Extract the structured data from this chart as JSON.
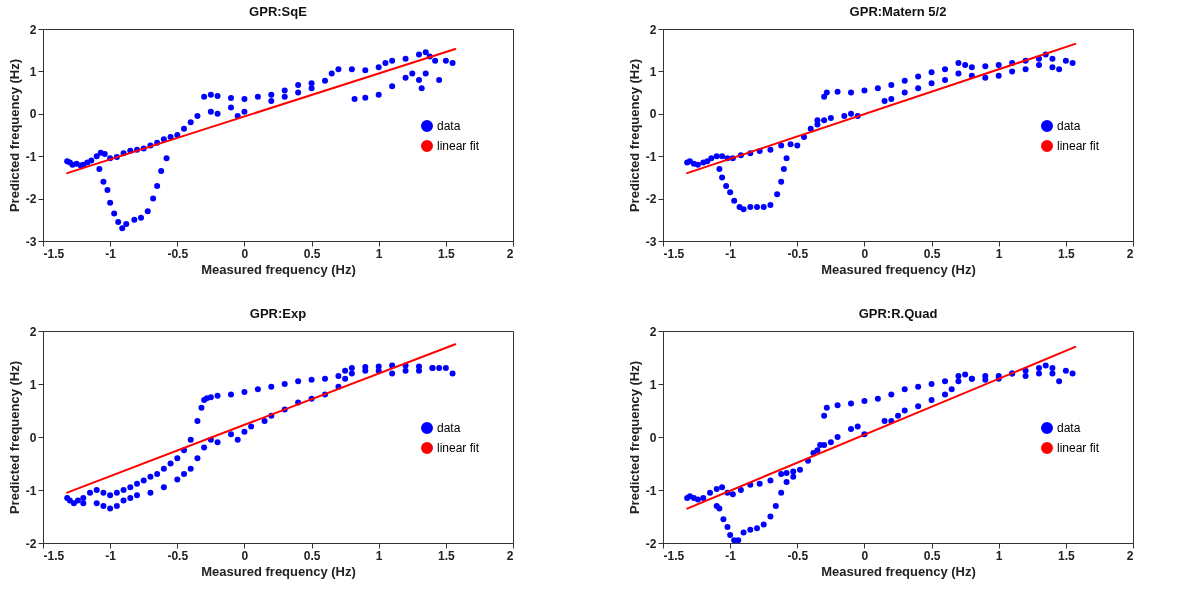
{
  "chart_data": [
    {
      "type": "scatter",
      "title": "GPR:SqE",
      "xlabel": "Measured frequency (Hz)",
      "ylabel": "Predicted frequency (Hz)",
      "xlim": [
        -1.5,
        2
      ],
      "ylim": [
        -3,
        2
      ],
      "xticks": [
        -1.5,
        -1,
        -0.5,
        0,
        0.5,
        1,
        1.5,
        2
      ],
      "yticks": [
        -3,
        -2,
        -1,
        0,
        1,
        2
      ],
      "legend": "right",
      "series": [
        {
          "name": "data",
          "color": "#0000ff",
          "marker": "circle",
          "x": [
            -1.32,
            -1.3,
            -1.28,
            -1.25,
            -1.22,
            -1.2,
            -1.17,
            -1.14,
            -1.1,
            -1.07,
            -1.04,
            -1.0,
            -0.95,
            -0.9,
            -0.85,
            -0.8,
            -0.75,
            -0.7,
            -0.65,
            -0.6,
            -0.55,
            -0.5,
            -0.45,
            -0.4,
            -0.35,
            -0.3,
            -0.25,
            -0.2,
            -0.1,
            0,
            0.1,
            0.2,
            0.3,
            0.4,
            0.5,
            0.6,
            0.65,
            0.7,
            0.8,
            0.9,
            1.0,
            1.05,
            1.1,
            1.2,
            1.3,
            1.35,
            1.38,
            1.42,
            1.5,
            1.55,
            -1.08,
            -1.05,
            -1.02,
            -1.0,
            -0.97,
            -0.94,
            -0.91,
            -0.88,
            -0.82,
            -0.77,
            -0.72,
            -0.68,
            -0.65,
            -0.62,
            -0.58,
            -0.25,
            -0.2,
            -0.1,
            -0.05,
            0,
            0.2,
            0.3,
            0.4,
            0.5,
            0.82,
            0.9,
            1.0,
            1.1,
            1.2,
            1.25,
            1.3,
            1.32,
            1.35,
            1.45
          ],
          "values": [
            -1.12,
            -1.15,
            -1.2,
            -1.18,
            -1.22,
            -1.2,
            -1.15,
            -1.1,
            -1.0,
            -0.92,
            -0.95,
            -1.05,
            -1.02,
            -0.93,
            -0.87,
            -0.85,
            -0.82,
            -0.75,
            -0.68,
            -0.6,
            -0.55,
            -0.5,
            -0.35,
            -0.2,
            -0.05,
            0.4,
            0.45,
            0.42,
            0.37,
            0.35,
            0.4,
            0.45,
            0.55,
            0.68,
            0.72,
            0.78,
            0.95,
            1.05,
            1.05,
            1.03,
            1.1,
            1.2,
            1.25,
            1.3,
            1.4,
            1.45,
            1.35,
            1.25,
            1.25,
            1.2,
            -1.3,
            -1.6,
            -1.8,
            -2.1,
            -2.35,
            -2.55,
            -2.7,
            -2.6,
            -2.5,
            -2.45,
            -2.3,
            -2.0,
            -1.7,
            -1.35,
            -1.05,
            0.05,
            0.0,
            0.15,
            -0.05,
            0.05,
            0.3,
            0.4,
            0.5,
            0.6,
            0.35,
            0.38,
            0.45,
            0.65,
            0.85,
            0.95,
            0.8,
            0.6,
            0.95,
            0.8
          ]
        },
        {
          "name": "linear fit",
          "type": "line",
          "color": "#ff0000",
          "x": [
            -1.32,
            1.57
          ],
          "values": [
            -1.4,
            1.53
          ]
        }
      ]
    },
    {
      "type": "scatter",
      "title": "GPR:Matern 5/2",
      "xlabel": "Measured frequency (Hz)",
      "ylabel": "Predicted frequency (Hz)",
      "xlim": [
        -1.5,
        2
      ],
      "ylim": [
        -3,
        2
      ],
      "xticks": [
        -1.5,
        -1,
        -0.5,
        0,
        0.5,
        1,
        1.5,
        2
      ],
      "yticks": [
        -3,
        -2,
        -1,
        0,
        1,
        2
      ],
      "legend": "right",
      "series": [
        {
          "name": "data",
          "color": "#0000ff",
          "marker": "circle",
          "x": [
            -1.32,
            -1.3,
            -1.27,
            -1.24,
            -1.2,
            -1.17,
            -1.14,
            -1.1,
            -1.06,
            -1.02,
            -0.98,
            -0.92,
            -0.85,
            -0.78,
            -0.7,
            -0.62,
            -0.55,
            -0.5,
            -0.45,
            -0.4,
            -0.35,
            -0.3,
            -0.28,
            -0.2,
            -0.1,
            0,
            0.1,
            0.2,
            0.3,
            0.4,
            0.5,
            0.6,
            0.7,
            0.75,
            0.8,
            0.9,
            1.0,
            1.1,
            1.2,
            1.3,
            1.35,
            1.4,
            1.45,
            1.5,
            1.55,
            -1.08,
            -1.06,
            -1.03,
            -1.0,
            -0.97,
            -0.93,
            -0.9,
            -0.85,
            -0.8,
            -0.75,
            -0.7,
            -0.65,
            -0.62,
            -0.6,
            -0.58,
            -0.35,
            -0.3,
            -0.25,
            -0.15,
            -0.1,
            -0.05,
            0.15,
            0.2,
            0.3,
            0.4,
            0.5,
            0.6,
            0.7,
            0.8,
            0.9,
            1.0,
            1.1,
            1.2,
            1.3,
            1.4
          ],
          "values": [
            -1.15,
            -1.12,
            -1.18,
            -1.2,
            -1.15,
            -1.12,
            -1.05,
            -1.0,
            -1.0,
            -1.05,
            -1.05,
            -0.98,
            -0.93,
            -0.88,
            -0.85,
            -0.75,
            -0.72,
            -0.75,
            -0.55,
            -0.35,
            -0.15,
            0.4,
            0.5,
            0.52,
            0.5,
            0.55,
            0.6,
            0.68,
            0.78,
            0.88,
            0.98,
            1.05,
            1.2,
            1.15,
            1.1,
            1.12,
            1.15,
            1.2,
            1.25,
            1.3,
            1.4,
            1.3,
            1.05,
            1.25,
            1.2,
            -1.3,
            -1.5,
            -1.7,
            -1.85,
            -2.05,
            -2.2,
            -2.25,
            -2.2,
            -2.2,
            -2.2,
            -2.15,
            -1.9,
            -1.6,
            -1.3,
            -1.05,
            -0.25,
            -0.15,
            -0.1,
            -0.05,
            0.0,
            -0.05,
            0.3,
            0.35,
            0.5,
            0.6,
            0.72,
            0.8,
            0.95,
            0.9,
            0.85,
            0.9,
            1.0,
            1.05,
            1.15,
            1.1
          ]
        },
        {
          "name": "linear fit",
          "type": "line",
          "color": "#ff0000",
          "x": [
            -1.32,
            1.57
          ],
          "values": [
            -1.4,
            1.65
          ]
        }
      ]
    },
    {
      "type": "scatter",
      "title": "GPR:Exp",
      "xlabel": "Measured frequency (Hz)",
      "ylabel": "Predicted frequency (Hz)",
      "xlim": [
        -1.5,
        2
      ],
      "ylim": [
        -2,
        2
      ],
      "xticks": [
        -1.5,
        -1,
        -0.5,
        0,
        0.5,
        1,
        1.5,
        2
      ],
      "yticks": [
        -2,
        -1,
        0,
        1,
        2
      ],
      "legend": "right",
      "series": [
        {
          "name": "data",
          "color": "#0000ff",
          "marker": "circle",
          "x": [
            -1.32,
            -1.3,
            -1.27,
            -1.24,
            -1.2,
            -1.15,
            -1.1,
            -1.05,
            -1.0,
            -0.95,
            -0.9,
            -0.85,
            -0.8,
            -0.75,
            -0.7,
            -0.65,
            -0.6,
            -0.55,
            -0.5,
            -0.45,
            -0.4,
            -0.35,
            -0.32,
            -0.3,
            -0.28,
            -0.25,
            -0.2,
            -0.1,
            0,
            0.1,
            0.2,
            0.3,
            0.4,
            0.5,
            0.6,
            0.7,
            0.75,
            0.8,
            0.9,
            1.0,
            1.1,
            1.2,
            1.3,
            1.4,
            1.45,
            1.5,
            1.55,
            -1.2,
            -1.1,
            -1.05,
            -1.0,
            -0.95,
            -0.9,
            -0.85,
            -0.8,
            -0.7,
            -0.6,
            -0.5,
            -0.45,
            -0.4,
            -0.35,
            -0.3,
            -0.25,
            -0.2,
            -0.1,
            -0.05,
            0,
            0.05,
            0.15,
            0.2,
            0.3,
            0.4,
            0.5,
            0.6,
            0.7,
            0.75,
            0.8,
            0.9,
            1.0,
            1.1,
            1.2,
            1.3,
            1.4
          ],
          "values": [
            -1.15,
            -1.2,
            -1.25,
            -1.2,
            -1.15,
            -1.05,
            -1.0,
            -1.05,
            -1.1,
            -1.05,
            -1.0,
            -0.95,
            -0.88,
            -0.82,
            -0.75,
            -0.7,
            -0.6,
            -0.5,
            -0.4,
            -0.25,
            -0.05,
            0.3,
            0.55,
            0.7,
            0.73,
            0.75,
            0.78,
            0.8,
            0.85,
            0.9,
            0.95,
            1.0,
            1.05,
            1.08,
            1.1,
            1.15,
            1.25,
            1.3,
            1.32,
            1.33,
            1.35,
            1.35,
            1.33,
            1.3,
            1.3,
            1.3,
            1.2,
            -1.25,
            -1.25,
            -1.3,
            -1.35,
            -1.3,
            -1.2,
            -1.15,
            -1.1,
            -1.05,
            -0.95,
            -0.8,
            -0.7,
            -0.6,
            -0.4,
            -0.2,
            -0.05,
            -0.1,
            0.05,
            -0.05,
            0.1,
            0.2,
            0.3,
            0.4,
            0.52,
            0.65,
            0.72,
            0.8,
            0.95,
            1.1,
            1.2,
            1.25,
            1.25,
            1.2,
            1.25,
            1.25,
            1.3
          ]
        },
        {
          "name": "linear fit",
          "type": "line",
          "color": "#ff0000",
          "x": [
            -1.32,
            1.57
          ],
          "values": [
            -1.05,
            1.75
          ]
        }
      ]
    },
    {
      "type": "scatter",
      "title": "GPR:R.Quad",
      "xlabel": "Measured frequency (Hz)",
      "ylabel": "Predicted frequency (Hz)",
      "xlim": [
        -1.5,
        2
      ],
      "ylim": [
        -2,
        2
      ],
      "xticks": [
        -1.5,
        -1,
        -0.5,
        0,
        0.5,
        1,
        1.5,
        2
      ],
      "yticks": [
        -2,
        -1,
        0,
        1,
        2
      ],
      "legend": "right",
      "series": [
        {
          "name": "data",
          "color": "#0000ff",
          "marker": "circle",
          "x": [
            -1.32,
            -1.3,
            -1.27,
            -1.24,
            -1.2,
            -1.15,
            -1.1,
            -1.06,
            -1.02,
            -0.98,
            -0.92,
            -0.85,
            -0.78,
            -0.7,
            -0.62,
            -0.58,
            -0.53,
            -0.48,
            -0.42,
            -0.38,
            -0.33,
            -0.3,
            -0.28,
            -0.2,
            -0.1,
            0,
            0.1,
            0.2,
            0.3,
            0.4,
            0.5,
            0.6,
            0.7,
            0.75,
            0.8,
            0.9,
            1.0,
            1.1,
            1.2,
            1.3,
            1.35,
            1.4,
            1.45,
            1.5,
            1.55,
            -1.1,
            -1.08,
            -1.05,
            -1.02,
            -1.0,
            -0.97,
            -0.94,
            -0.9,
            -0.85,
            -0.8,
            -0.75,
            -0.7,
            -0.66,
            -0.62,
            -0.58,
            -0.53,
            -0.35,
            -0.3,
            -0.25,
            -0.2,
            -0.1,
            -0.05,
            0,
            0.15,
            0.2,
            0.25,
            0.3,
            0.4,
            0.5,
            0.6,
            0.65,
            0.7,
            0.8,
            0.9,
            1.0,
            1.1,
            1.2,
            1.3,
            1.4
          ],
          "values": [
            -1.15,
            -1.12,
            -1.15,
            -1.18,
            -1.15,
            -1.05,
            -0.98,
            -0.95,
            -1.05,
            -1.08,
            -1.0,
            -0.9,
            -0.88,
            -0.82,
            -0.7,
            -0.68,
            -0.75,
            -0.62,
            -0.45,
            -0.3,
            -0.15,
            0.4,
            0.55,
            0.6,
            0.63,
            0.68,
            0.72,
            0.8,
            0.9,
            0.95,
            1.0,
            1.05,
            1.15,
            1.18,
            1.1,
            1.08,
            1.1,
            1.2,
            1.25,
            1.3,
            1.35,
            1.3,
            1.05,
            1.25,
            1.2,
            -1.3,
            -1.35,
            -1.55,
            -1.7,
            -1.85,
            -1.95,
            -1.95,
            -1.8,
            -1.75,
            -1.72,
            -1.65,
            -1.5,
            -1.3,
            -1.05,
            -0.85,
            -0.65,
            -0.25,
            -0.15,
            -0.1,
            0.0,
            0.15,
            0.2,
            0.05,
            0.3,
            0.3,
            0.4,
            0.5,
            0.58,
            0.7,
            0.8,
            0.9,
            1.05,
            1.1,
            1.15,
            1.15,
            1.2,
            1.15,
            1.2,
            1.2
          ]
        },
        {
          "name": "linear fit",
          "type": "line",
          "color": "#ff0000",
          "x": [
            -1.32,
            1.57
          ],
          "values": [
            -1.35,
            1.7
          ]
        }
      ]
    }
  ]
}
